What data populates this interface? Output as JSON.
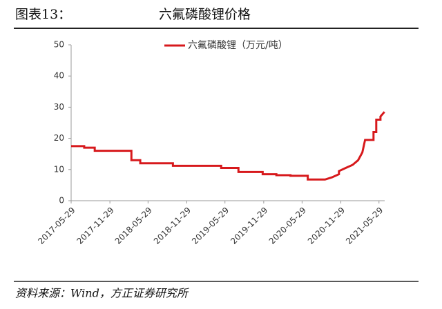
{
  "chart_data": {
    "type": "line",
    "title_label": "图表13：",
    "title": "六氟磷酸锂价格",
    "source": "资料来源：Wind，方正证券研究所",
    "x": [
      "2017-05-29",
      "2017-07-30",
      "2017-07-30",
      "2017-09-18",
      "2017-09-18",
      "2018-03-11",
      "2018-03-11",
      "2018-04-22",
      "2018-04-22",
      "2018-09-24",
      "2018-09-24",
      "2019-05-11",
      "2019-05-11",
      "2019-08-01",
      "2019-08-01",
      "2019-11-24",
      "2019-11-24",
      "2020-01-28",
      "2020-01-28",
      "2020-04-04",
      "2020-04-04",
      "2020-06-25",
      "2020-06-25",
      "2020-09-15",
      "2020-10-18",
      "2020-11-20",
      "2020-11-20",
      "2020-12-22",
      "2021-01-24",
      "2021-02-19",
      "2021-03-11",
      "2021-03-24",
      "2021-05-03",
      "2021-05-03",
      "2021-05-16",
      "2021-05-16",
      "2021-06-05",
      "2021-06-05",
      "2021-06-24"
    ],
    "series": [
      {
        "name": "六氟磷酸锂（万元/吨）",
        "color": "#d7191c",
        "values": [
          17.5,
          17.5,
          17,
          17,
          16,
          16,
          13,
          13,
          12,
          12,
          11.2,
          11.2,
          10.5,
          10.5,
          9.2,
          9.2,
          8.5,
          8.5,
          8.2,
          8.2,
          8,
          8,
          6.8,
          6.8,
          7.5,
          8.5,
          9.5,
          10.5,
          11.5,
          13,
          15.5,
          19.5,
          19.5,
          22,
          22,
          26,
          26,
          27,
          28.5
        ]
      }
    ],
    "xlim": [
      "2017-05-29",
      "2021-06-25"
    ],
    "xticks": [
      "2017-05-29",
      "2017-11-29",
      "2018-05-29",
      "2018-11-29",
      "2019-05-29",
      "2019-11-29",
      "2020-05-29",
      "2020-11-29",
      "2021-05-29"
    ],
    "ylim": [
      0,
      50
    ],
    "yticks": [
      0,
      10,
      20,
      30,
      40,
      50
    ],
    "grid": false,
    "legend": "top"
  }
}
